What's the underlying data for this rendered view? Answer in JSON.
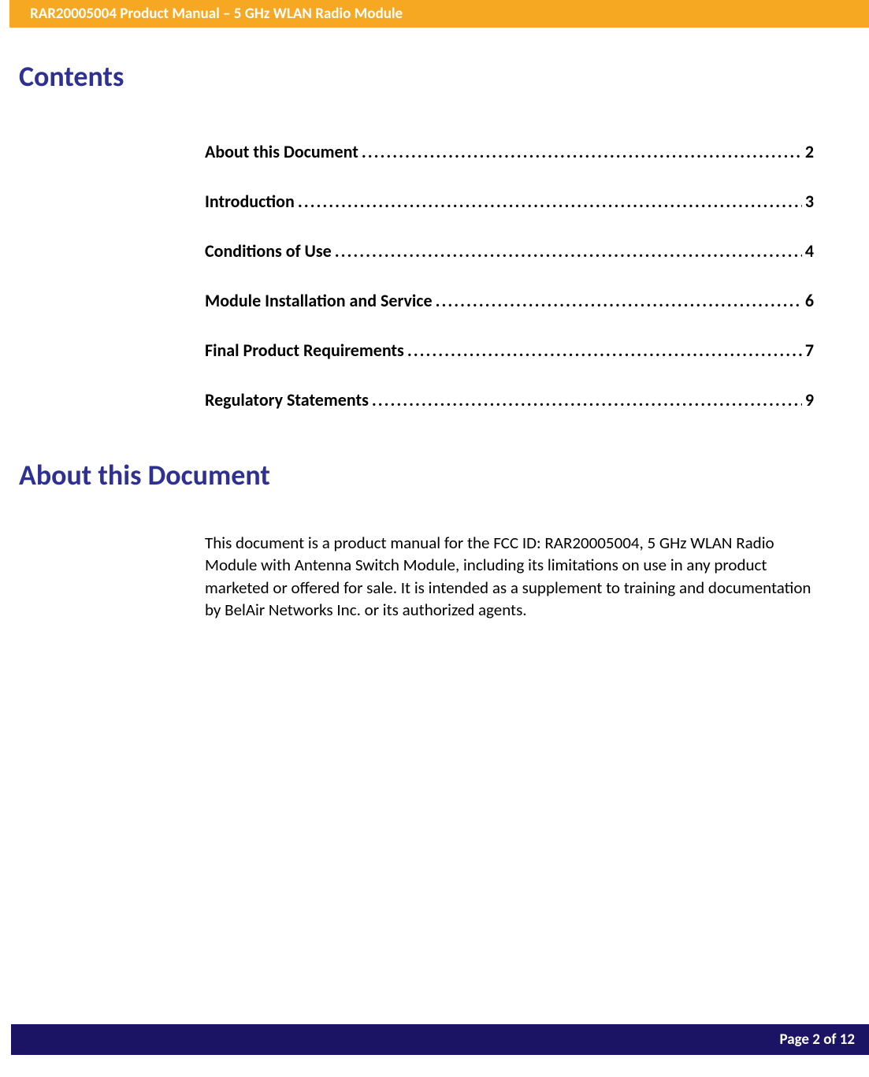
{
  "header": {
    "title": "RAR20005004 Product Manual – 5 GHz WLAN Radio Module",
    "background_color": "#f7a823",
    "text_color": "#ffffff"
  },
  "headings": {
    "contents": "Contents",
    "about": "About this Document",
    "heading_color": "#2e3192",
    "heading_fontsize": 36
  },
  "toc": {
    "items": [
      {
        "label": "About this Document",
        "page": "2"
      },
      {
        "label": "Introduction",
        "page": "3"
      },
      {
        "label": "Conditions of Use",
        "page": "4"
      },
      {
        "label": "Module Installation and Service",
        "page": "6"
      },
      {
        "label": "Final Product Requirements",
        "page": "7"
      },
      {
        "label": "Regulatory Statements",
        "page": "9"
      }
    ],
    "fontsize": 22,
    "text_color": "#000000",
    "dot_char": "."
  },
  "about_body": {
    "text": "This document is a product manual for the FCC ID: RAR20005004, 5 GHz WLAN Radio Module with Antenna Switch Module, including its limitations on use in any product marketed or offered for sale.  It is intended as a supplement to training and documentation by BelAir Networks Inc. or its authorized agents.",
    "fontsize": 21,
    "text_color": "#000000"
  },
  "footer": {
    "text": "Page 2 of 12",
    "background_color": "#1b1464",
    "text_color": "#ffffff"
  }
}
